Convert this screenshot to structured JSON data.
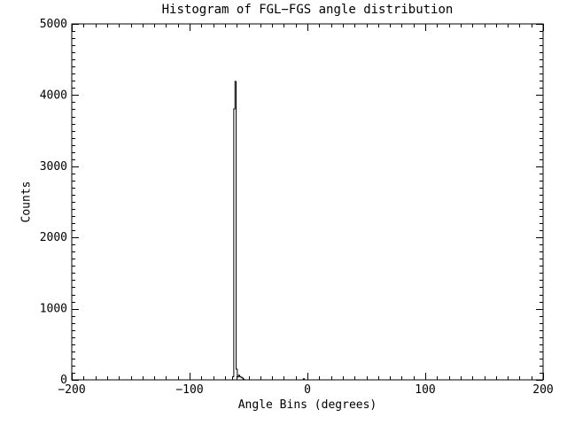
{
  "window": {
    "background_color": "#ffffff",
    "foreground_color": "#000000"
  },
  "chart_data": {
    "type": "histogram",
    "title": "Histogram of FGL−FGS angle distribution",
    "xlabel": "Angle Bins (degrees)",
    "ylabel": "Counts",
    "xlim": [
      -200,
      200
    ],
    "ylim": [
      0,
      5000
    ],
    "grid": false,
    "legend": null,
    "line_color": "#000000",
    "xticks": {
      "major_values": [
        -200,
        -100,
        0,
        100,
        200
      ],
      "major_labels": [
        "−200",
        "−100",
        "0",
        "100",
        "200"
      ],
      "minor_step": 10
    },
    "yticks": {
      "major_values": [
        0,
        1000,
        2000,
        3000,
        4000,
        5000
      ],
      "major_labels": [
        "0",
        "1000",
        "2000",
        "3000",
        "4000",
        "5000"
      ],
      "minor_step": 100
    },
    "bins": {
      "width": 1,
      "centers": [
        -64,
        -63,
        -62,
        -61,
        -60,
        -59,
        -58,
        -57,
        -56,
        -55,
        -54,
        -53,
        -4,
        -3,
        -2
      ],
      "counts": [
        0,
        45,
        3806,
        4192,
        150,
        40,
        65,
        45,
        35,
        25,
        10,
        0,
        0,
        15,
        0
      ]
    },
    "peak": {
      "angle": -61,
      "count": 4192
    }
  }
}
